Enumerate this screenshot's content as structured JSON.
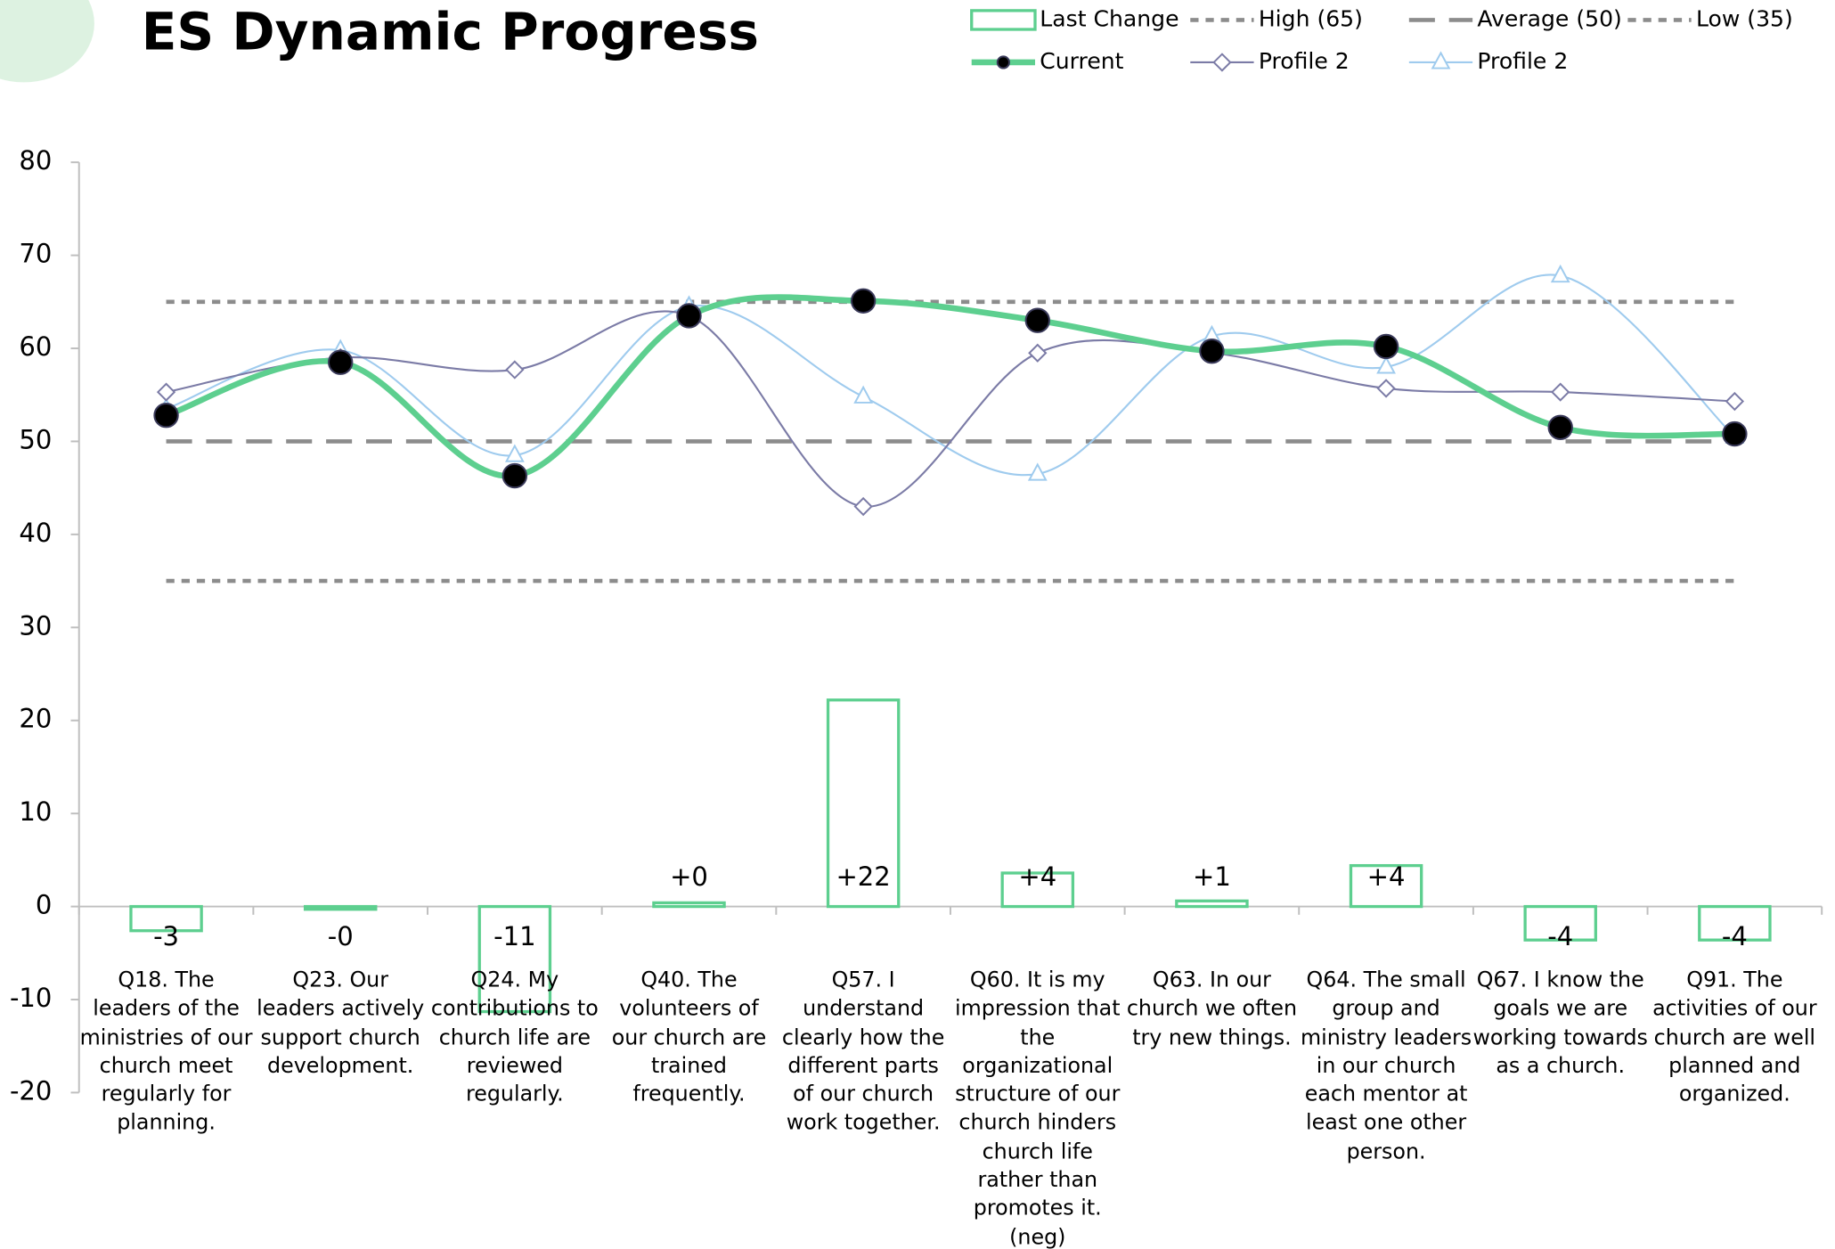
{
  "chart_data": {
    "type": "line",
    "title": "ES Dynamic Progress",
    "categories": [
      "Q18. The leaders of the ministries of our church meet regularly for planning.",
      "Q23. Our leaders actively support church development.",
      "Q24. My contributions to church life are reviewed regularly.",
      "Q40. The volunteers of our church are trained frequently.",
      "Q57. I understand clearly how the different parts of our church work together.",
      "Q60. It is my impression that the organizational structure of our church hinders church life rather than promotes it. (neg)",
      "Q63. In our church we often try new things.",
      "Q64. The small group and ministry leaders in our church each mentor at least one other person.",
      "Q67. I know the goals we are working towards as a church.",
      "Q91. The activities of our church are well planned and organized."
    ],
    "bars": {
      "name": "Last Change",
      "color": "#5dcf8f",
      "values": [
        -2.6,
        -0.3,
        -11.3,
        0.4,
        22.2,
        3.6,
        0.6,
        4.4,
        -3.6,
        -3.6
      ],
      "value_labels": [
        "-3",
        "-0",
        "-11",
        "+0",
        "+22",
        "+4",
        "+1",
        "+4",
        "-4",
        "-4"
      ]
    },
    "series": [
      {
        "name": "Current",
        "color": "#5dcf8f",
        "marker": "circle",
        "values": [
          52.8,
          58.5,
          46.3,
          63.5,
          65.1,
          63.0,
          59.7,
          60.2,
          51.5,
          50.8
        ]
      },
      {
        "name": "Profile 2",
        "color": "#7b7ba6",
        "marker": "diamond",
        "values": [
          55.3,
          59.0,
          57.7,
          63.5,
          43.0,
          59.5,
          59.5,
          55.7,
          55.3,
          54.3
        ]
      },
      {
        "name": "Profile 2",
        "color": "#9fcbee",
        "marker": "triangle",
        "values": [
          53.5,
          59.8,
          48.5,
          64.5,
          54.8,
          46.5,
          61.3,
          58.0,
          67.8,
          50.5
        ]
      }
    ],
    "reference_lines": [
      {
        "name": "High (65)",
        "value": 65,
        "color": "#8c8c8c",
        "dash": "short"
      },
      {
        "name": "Average (50)",
        "value": 50,
        "color": "#8c8c8c",
        "dash": "long"
      },
      {
        "name": "Low (35)",
        "value": 35,
        "color": "#8c8c8c",
        "dash": "short"
      }
    ],
    "ylim": [
      -20,
      80
    ],
    "yticks": [
      -20,
      -10,
      0,
      10,
      20,
      30,
      40,
      50,
      60,
      70,
      80
    ]
  }
}
